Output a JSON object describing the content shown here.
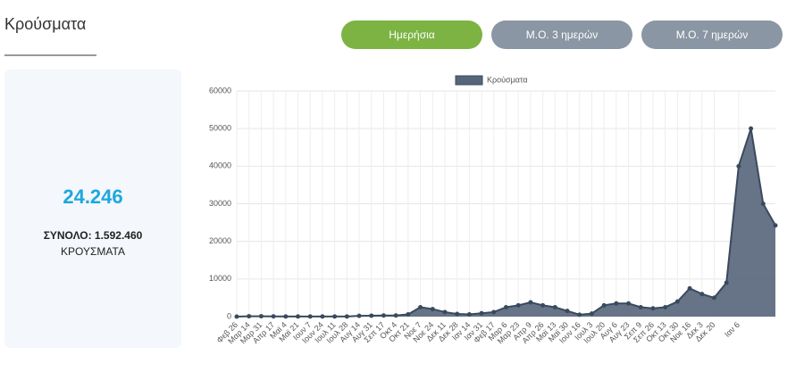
{
  "header": {
    "title": "Κρούσματα"
  },
  "buttons": [
    {
      "label": "Ημερήσια",
      "active": true
    },
    {
      "label": "Μ.Ο. 3 ημερών",
      "active": false
    },
    {
      "label": "Μ.Ο. 7 ημερών",
      "active": false
    }
  ],
  "summary": {
    "value": "24.246",
    "total": "ΣΥΝΟΛΟ: 1.592.460",
    "label": "ΚΡΟΥΣΜΑΤΑ"
  },
  "chart_data": {
    "type": "area",
    "categories": [
      "Φεβ 26",
      "Μαρ 14",
      "Μαρ 31",
      "Απρ 17",
      "Μαϊ 4",
      "Μαϊ 21",
      "Ιουν 7",
      "Ιουν 24",
      "Ιουλ 11",
      "Ιουλ 28",
      "Αυγ 14",
      "Αυγ 31",
      "Σεπ 17",
      "Οκτ 4",
      "Οκτ 21",
      "Νοε 7",
      "Νοε 24",
      "Δεκ 11",
      "Δεκ 28",
      "Ιαν 14",
      "Ιαν 31",
      "Φεβ 17",
      "Μαρ 6",
      "Μαρ 23",
      "Απρ 9",
      "Απρ 26",
      "Μαϊ 13",
      "Μαϊ 30",
      "Ιουν 16",
      "Ιουλ 3",
      "Ιουλ 20",
      "Αυγ 6",
      "Αυγ 23",
      "Σεπ 9",
      "Σεπ 26",
      "Οκτ 13",
      "Οκτ 30",
      "Νοε 16",
      "Δεκ 3",
      "Δεκ 20",
      null,
      "Ιαν 6",
      null,
      null,
      null
    ],
    "series": [
      {
        "name": "Κρούσματα",
        "color": "#56657a",
        "values": [
          0,
          100,
          100,
          50,
          20,
          20,
          20,
          20,
          30,
          40,
          200,
          250,
          300,
          300,
          600,
          2500,
          2000,
          1200,
          700,
          600,
          900,
          1200,
          2500,
          3000,
          3800,
          3000,
          2500,
          1500,
          500,
          800,
          3000,
          3500,
          3500,
          2500,
          2200,
          2500,
          4000,
          7500,
          6000,
          5000,
          9000,
          40000,
          50000,
          30000,
          24246
        ]
      }
    ],
    "ylim": [
      0,
      60000
    ],
    "yticks": [
      0,
      10000,
      20000,
      30000,
      40000,
      50000,
      60000
    ],
    "grid": true,
    "legend": "top"
  }
}
